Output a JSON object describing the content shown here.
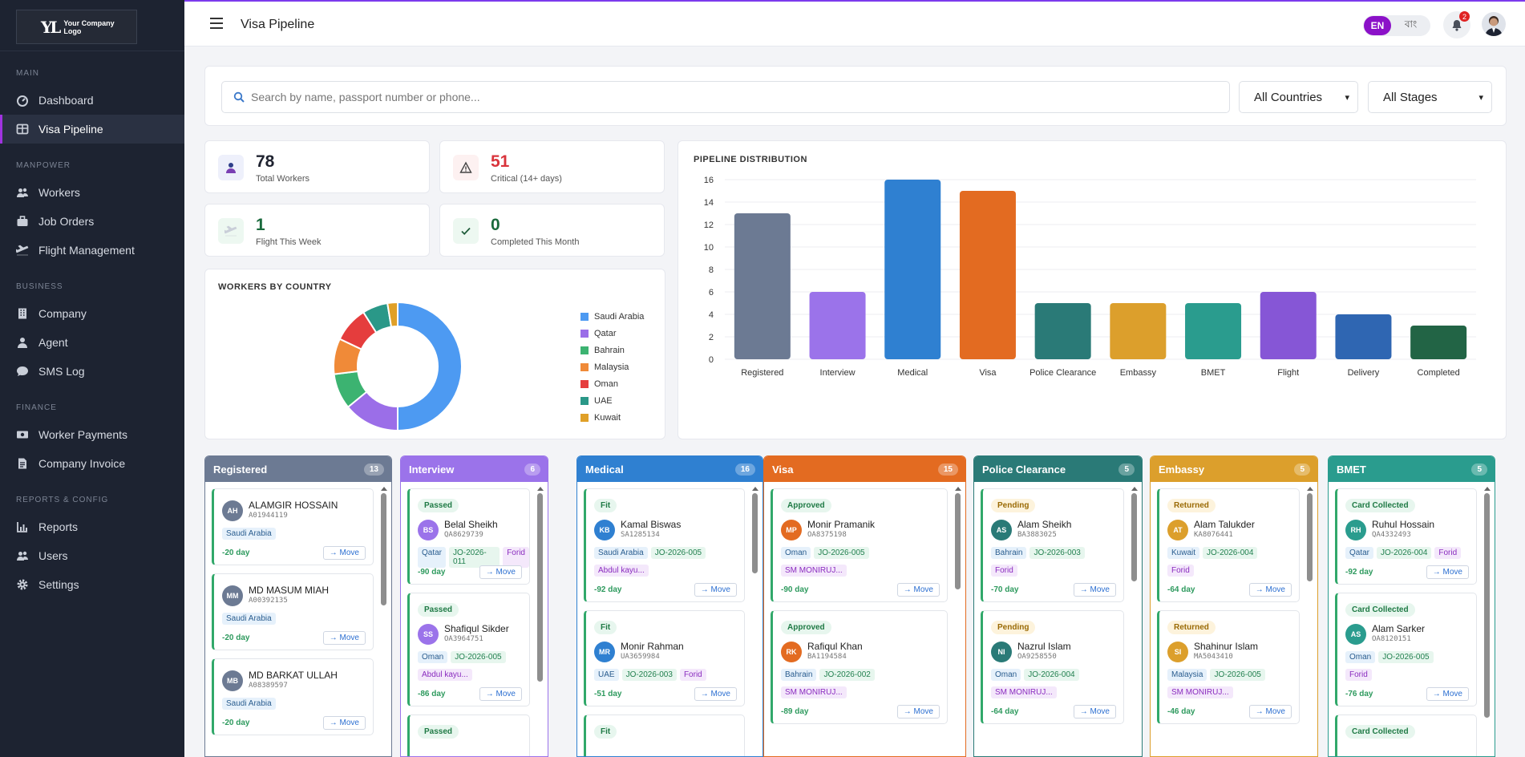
{
  "logo": {
    "line1": "Your Company",
    "line2": "Logo",
    "mark": "YL"
  },
  "sidebar": {
    "sections": [
      {
        "label": "MAIN",
        "items": [
          {
            "label": "Dashboard",
            "icon": "dashboard-icon"
          },
          {
            "label": "Visa Pipeline",
            "icon": "columns-icon",
            "active": true
          }
        ]
      },
      {
        "label": "MANPOWER",
        "items": [
          {
            "label": "Workers",
            "icon": "users-icon"
          },
          {
            "label": "Job Orders",
            "icon": "briefcase-icon"
          },
          {
            "label": "Flight Management",
            "icon": "plane-icon"
          }
        ]
      },
      {
        "label": "BUSINESS",
        "items": [
          {
            "label": "Company",
            "icon": "building-icon"
          },
          {
            "label": "Agent",
            "icon": "user-icon"
          },
          {
            "label": "SMS Log",
            "icon": "chat-icon"
          }
        ]
      },
      {
        "label": "FINANCE",
        "items": [
          {
            "label": "Worker Payments",
            "icon": "money-icon"
          },
          {
            "label": "Company Invoice",
            "icon": "invoice-icon"
          }
        ]
      },
      {
        "label": "REPORTS & CONFIG",
        "items": [
          {
            "label": "Reports",
            "icon": "chart-icon"
          },
          {
            "label": "Users",
            "icon": "users-icon"
          },
          {
            "label": "Settings",
            "icon": "gear-icon"
          }
        ]
      }
    ]
  },
  "topbar": {
    "title": "Visa Pipeline",
    "lang_en": "EN",
    "lang_bn": "বাং",
    "notif_count": "2"
  },
  "filters": {
    "search_placeholder": "Search by name, passport number or phone...",
    "country": "All Countries",
    "stage": "All Stages"
  },
  "stats": [
    {
      "value": "78",
      "label": "Total Workers",
      "icon": "person-icon",
      "color": "#1f2330",
      "bg": "#eef0fb"
    },
    {
      "value": "51",
      "label": "Critical (14+ days)",
      "icon": "warning-icon",
      "color": "#d9343c",
      "bg": "#fdf1f1"
    },
    {
      "value": "1",
      "label": "Flight This Week",
      "icon": "plane-icon",
      "color": "#1a6a3c",
      "bg": "#edf8f1"
    },
    {
      "value": "0",
      "label": "Completed This Month",
      "icon": "check-icon",
      "color": "#1a6a3c",
      "bg": "#edf8f1"
    }
  ],
  "country_chart": {
    "title": "WORKERS BY COUNTRY"
  },
  "pipeline_chart": {
    "title": "PIPELINE DISTRIBUTION"
  },
  "chart_data": [
    {
      "type": "pie",
      "title": "WORKERS BY COUNTRY",
      "categories": [
        "Saudi Arabia",
        "Qatar",
        "Bahrain",
        "Malaysia",
        "Oman",
        "UAE",
        "Kuwait"
      ],
      "values": [
        39,
        11,
        7,
        7,
        7,
        5,
        2
      ],
      "colors": [
        "#4d9af2",
        "#9b6ee8",
        "#3cb371",
        "#f08a38",
        "#e53d3d",
        "#2a9888",
        "#e0a028"
      ],
      "donut": true,
      "legend": "right"
    },
    {
      "type": "bar",
      "title": "PIPELINE DISTRIBUTION",
      "categories": [
        "Registered",
        "Interview",
        "Medical",
        "Visa",
        "Police Clearance",
        "Embassy",
        "BMET",
        "Flight",
        "Delivery",
        "Completed"
      ],
      "values": [
        13,
        6,
        16,
        15,
        5,
        5,
        5,
        6,
        4,
        3
      ],
      "colors": [
        "#6c7a93",
        "#9b73ea",
        "#2f80d1",
        "#e36b21",
        "#2a7a77",
        "#dc9f2c",
        "#2a9c8e",
        "#8656d6",
        "#2f66b2",
        "#226445"
      ],
      "ylim": [
        0,
        16
      ],
      "yticks": [
        0,
        2,
        4,
        6,
        8,
        10,
        12,
        14,
        16
      ],
      "grid": true
    }
  ],
  "kanban": [
    {
      "name": "Registered",
      "count": "13",
      "color": "#6c7a93",
      "cards": [
        {
          "name": "ALAMGIR HOSSAIN",
          "initials": "AH",
          "passport": "A01944119",
          "tags": [
            {
              "t": "Saudi Arabia",
              "k": "c"
            }
          ],
          "days": "-20 day"
        },
        {
          "name": "MD MASUM MIAH",
          "initials": "MM",
          "passport": "A00392135",
          "tags": [
            {
              "t": "Saudi Arabia",
              "k": "c"
            }
          ],
          "days": "-20 day"
        },
        {
          "name": "MD BARKAT ULLAH",
          "initials": "MB",
          "passport": "A08389597",
          "tags": [
            {
              "t": "Saudi Arabia",
              "k": "c"
            }
          ],
          "days": "-20 day"
        }
      ]
    },
    {
      "name": "Interview",
      "count": "6",
      "color": "#9b73ea",
      "cards": [
        {
          "status": "Passed",
          "name": "Belal Sheikh",
          "initials": "BS",
          "passport": "QA8629739",
          "tags": [
            {
              "t": "Qatar",
              "k": "c"
            },
            {
              "t": "JO-2026-011",
              "k": "j"
            },
            {
              "t": "Forid",
              "k": "a"
            }
          ],
          "days": "-90 day"
        },
        {
          "status": "Passed",
          "name": "Shafiqul Sikder",
          "initials": "SS",
          "passport": "OA3964751",
          "tags": [
            {
              "t": "Oman",
              "k": "c"
            },
            {
              "t": "JO-2026-005",
              "k": "j"
            }
          ],
          "agent": "Abdul kayu...",
          "days": "-86 day"
        },
        {
          "status": "Passed"
        }
      ]
    },
    {
      "name": "Medical",
      "count": "16",
      "color": "#2f80d1",
      "cards": [
        {
          "status": "Fit",
          "name": "Kamal Biswas",
          "initials": "KB",
          "passport": "SA1285134",
          "tags": [
            {
              "t": "Saudi Arabia",
              "k": "c"
            },
            {
              "t": "JO-2026-005",
              "k": "j"
            }
          ],
          "agent": "Abdul kayu...",
          "days": "-92 day"
        },
        {
          "status": "Fit",
          "name": "Monir Rahman",
          "initials": "MR",
          "passport": "UA3659984",
          "tags": [
            {
              "t": "UAE",
              "k": "c"
            },
            {
              "t": "JO-2026-003",
              "k": "j"
            },
            {
              "t": "Forid",
              "k": "a"
            }
          ],
          "days": "-51 day"
        },
        {
          "status": "Fit"
        }
      ]
    },
    {
      "name": "Visa",
      "count": "15",
      "color": "#e36b21",
      "cards": [
        {
          "status": "Approved",
          "name": "Monir Pramanik",
          "initials": "MP",
          "passport": "OA8375198",
          "tags": [
            {
              "t": "Oman",
              "k": "c"
            },
            {
              "t": "JO-2026-005",
              "k": "j"
            }
          ],
          "agent": "SM MONIRUJ...",
          "days": "-90 day"
        },
        {
          "status": "Approved",
          "name": "Rafiqul Khan",
          "initials": "RK",
          "passport": "BA1194584",
          "tags": [
            {
              "t": "Bahrain",
              "k": "c"
            },
            {
              "t": "JO-2026-002",
              "k": "j"
            }
          ],
          "agent": "SM MONIRUJ...",
          "days": "-89 day"
        }
      ]
    },
    {
      "name": "Police Clearance",
      "count": "5",
      "color": "#2a7a77",
      "cards": [
        {
          "status": "Pending",
          "name": "Alam Sheikh",
          "initials": "AS",
          "passport": "BA3883025",
          "tags": [
            {
              "t": "Bahrain",
              "k": "c"
            },
            {
              "t": "JO-2026-003",
              "k": "j"
            }
          ],
          "agent": "Forid",
          "days": "-70 day"
        },
        {
          "status": "Pending",
          "name": "Nazrul Islam",
          "initials": "NI",
          "passport": "OA9258550",
          "tags": [
            {
              "t": "Oman",
              "k": "c"
            },
            {
              "t": "JO-2026-004",
              "k": "j"
            }
          ],
          "agent": "SM MONIRUJ...",
          "days": "-64 day"
        }
      ]
    },
    {
      "name": "Embassy",
      "count": "5",
      "color": "#dc9f2c",
      "cards": [
        {
          "status": "Returned",
          "name": "Alam Talukder",
          "initials": "AT",
          "passport": "KA8076441",
          "tags": [
            {
              "t": "Kuwait",
              "k": "c"
            },
            {
              "t": "JO-2026-004",
              "k": "j"
            }
          ],
          "agent": "Forid",
          "days": "-64 day"
        },
        {
          "status": "Returned",
          "name": "Shahinur Islam",
          "initials": "SI",
          "passport": "MA5043410",
          "tags": [
            {
              "t": "Malaysia",
              "k": "c"
            },
            {
              "t": "JO-2026-005",
              "k": "j"
            }
          ],
          "agent": "SM MONIRUJ...",
          "days": "-46 day"
        }
      ]
    },
    {
      "name": "BMET",
      "count": "5",
      "color": "#2a9c8e",
      "cards": [
        {
          "status": "Card Collected",
          "name": "Ruhul Hossain",
          "initials": "RH",
          "passport": "QA4332493",
          "tags": [
            {
              "t": "Qatar",
              "k": "c"
            },
            {
              "t": "JO-2026-004",
              "k": "j"
            },
            {
              "t": "Forid",
              "k": "a"
            }
          ],
          "days": "-92 day"
        },
        {
          "status": "Card Collected",
          "name": "Alam Sarker",
          "initials": "AS",
          "passport": "OA8120151",
          "tags": [
            {
              "t": "Oman",
              "k": "c"
            },
            {
              "t": "JO-2026-005",
              "k": "j"
            }
          ],
          "agent": "Forid",
          "days": "-76 day"
        },
        {
          "status": "Card Collected"
        }
      ]
    }
  ],
  "move_label": "→ Move",
  "status_styles": {
    "Passed": {
      "bg": "#e7f6ee",
      "fg": "#1f7a45"
    },
    "Fit": {
      "bg": "#e7f6ee",
      "fg": "#1f7a45"
    },
    "Approved": {
      "bg": "#e7f6ee",
      "fg": "#1f7a45"
    },
    "Pending": {
      "bg": "#fdf3dc",
      "fg": "#9a6a05"
    },
    "Returned": {
      "bg": "#fdf3dc",
      "fg": "#9a6a05"
    },
    "Card Collected": {
      "bg": "#e7f6ee",
      "fg": "#1f7a45"
    }
  },
  "avatar_colors": [
    "#6c7a93",
    "#9b73ea",
    "#2f80d1",
    "#e36b21",
    "#2a7a77",
    "#dc9f2c",
    "#2a9c8e"
  ]
}
